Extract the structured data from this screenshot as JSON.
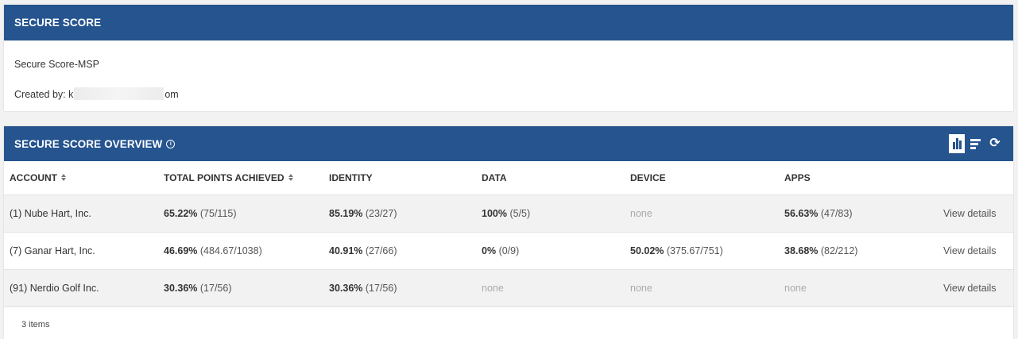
{
  "secure_score": {
    "header": "SECURE SCORE",
    "name": "Secure Score-MSP",
    "created_by_label": "Created by:",
    "created_by_prefix": "k",
    "created_by_suffix": "om"
  },
  "overview": {
    "header": "SECURE SCORE OVERVIEW",
    "info_icon": "info-icon",
    "toolbar": {
      "chart_view_icon": "bar-chart-icon",
      "list_view_icon": "list-icon",
      "refresh_icon": "refresh-icon",
      "refresh_glyph": "⟳"
    },
    "columns": {
      "account": "ACCOUNT",
      "total": "TOTAL POINTS ACHIEVED",
      "identity": "IDENTITY",
      "data": "DATA",
      "device": "DEVICE",
      "apps": "APPS"
    },
    "rows": [
      {
        "account": "(1) Nube Hart, Inc.",
        "total_pct": "65.22%",
        "total_sub": "(75/115)",
        "identity_pct": "85.19%",
        "identity_sub": "(23/27)",
        "data_pct": "100%",
        "data_sub": "(5/5)",
        "device_pct": "",
        "device_sub": "",
        "device_none": "none",
        "apps_pct": "56.63%",
        "apps_sub": "(47/83)",
        "action": "View details"
      },
      {
        "account": "(7) Ganar Hart, Inc.",
        "total_pct": "46.69%",
        "total_sub": "(484.67/1038)",
        "identity_pct": "40.91%",
        "identity_sub": "(27/66)",
        "data_pct": "0%",
        "data_sub": "(0/9)",
        "device_pct": "50.02%",
        "device_sub": "(375.67/751)",
        "apps_pct": "38.68%",
        "apps_sub": "(82/212)",
        "action": "View details"
      },
      {
        "account": "(91) Nerdio Golf Inc.",
        "total_pct": "30.36%",
        "total_sub": "(17/56)",
        "identity_pct": "30.36%",
        "identity_sub": "(17/56)",
        "data_none": "none",
        "device_none": "none",
        "apps_none": "none",
        "action": "View details"
      }
    ],
    "footer": "3 items"
  }
}
